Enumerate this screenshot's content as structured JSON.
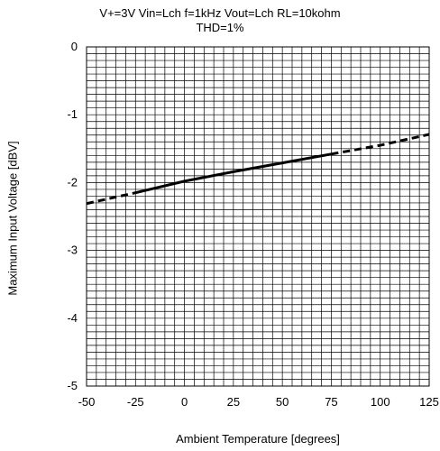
{
  "chart_data": {
    "type": "line",
    "title": "V+=3V Vin=Lch f=1kHz Vout=Lch RL=10kohm",
    "subtitle": "THD=1%",
    "xlabel": "Ambient Temperature [degrees]",
    "ylabel": "Maximum Input Voltage [dBV]",
    "xlim": [
      -50,
      125
    ],
    "ylim": [
      -5,
      0
    ],
    "xticks": [
      "-50",
      "-25",
      "0",
      "25",
      "50",
      "75",
      "100",
      "125"
    ],
    "yticks": [
      "0",
      "-1",
      "-2",
      "-3",
      "-4",
      "-5"
    ],
    "grid": true,
    "series": [
      {
        "style": "solid",
        "x": [
          -25,
          0,
          25,
          50,
          75
        ],
        "y": [
          -2.15,
          -1.98,
          -1.84,
          -1.71,
          -1.58
        ]
      },
      {
        "style": "dashed",
        "x": [
          -50,
          -25
        ],
        "y": [
          -2.31,
          -2.15
        ]
      },
      {
        "style": "dashed",
        "x": [
          75,
          100,
          125
        ],
        "y": [
          -1.58,
          -1.45,
          -1.29
        ]
      }
    ]
  }
}
